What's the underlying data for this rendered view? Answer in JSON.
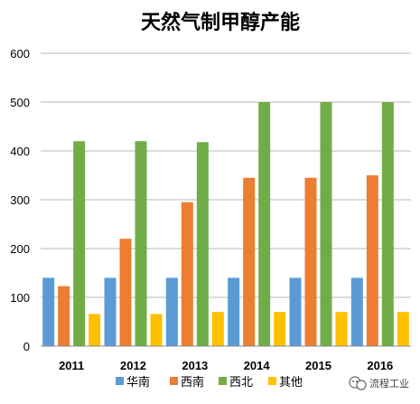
{
  "chart_data": {
    "type": "bar",
    "title": "天然气制甲醇产能",
    "categories": [
      "2011",
      "2012",
      "2013",
      "2014",
      "2015",
      "2016"
    ],
    "series": [
      {
        "name": "华南",
        "color": "#5B9BD5",
        "values": [
          140,
          140,
          140,
          140,
          140,
          140
        ]
      },
      {
        "name": "西南",
        "color": "#ED7D31",
        "values": [
          123,
          220,
          295,
          345,
          345,
          350
        ]
      },
      {
        "name": "西北",
        "color": "#70AD47",
        "values": [
          420,
          420,
          418,
          500,
          500,
          500
        ]
      },
      {
        "name": "其他",
        "color": "#FFC000",
        "values": [
          66,
          66,
          70,
          70,
          70,
          70
        ]
      }
    ],
    "ylim": [
      0,
      600
    ],
    "yticks": [
      0,
      100,
      200,
      300,
      400,
      500,
      600
    ],
    "grid": true,
    "legend_position": "bottom"
  },
  "watermark": {
    "text": "流程工业",
    "icon": "wechat-icon"
  }
}
